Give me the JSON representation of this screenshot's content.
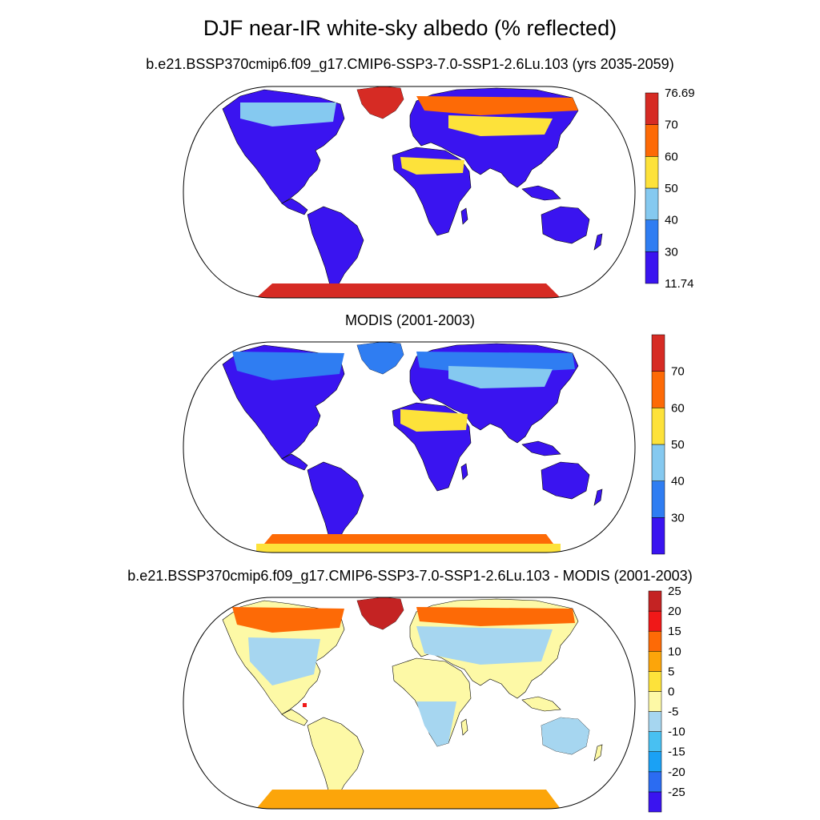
{
  "title": "DJF near-IR white-sky albedo (% reflected)",
  "panels": [
    {
      "title": "b.e21.BSSP370cmip6.f09_g17.CMIP6-SSP3-7.0-SSP1-2.6Lu.103 (yrs 2035-2059)",
      "colorbar": {
        "colors": [
          "#3a14f0",
          "#2f7df2",
          "#85c9f0",
          "#fde23a",
          "#fd6a06",
          "#d62b24"
        ],
        "labels": [
          "11.74",
          "30",
          "40",
          "50",
          "60",
          "70",
          "76.69"
        ]
      }
    },
    {
      "title": "MODIS (2001-2003)",
      "colorbar": {
        "colors": [
          "#3a14f0",
          "#2f7df2",
          "#85c9f0",
          "#fde23a",
          "#fd6a06",
          "#d62b24"
        ],
        "labels": [
          "30",
          "40",
          "50",
          "60",
          "70"
        ]
      }
    },
    {
      "title": "b.e21.BSSP370cmip6.f09_g17.CMIP6-SSP3-7.0-SSP1-2.6Lu.103 - MODIS (2001-2003)",
      "colorbar": {
        "colors": [
          "#3a14f0",
          "#2b6cf2",
          "#1aa1f5",
          "#48c0f2",
          "#a6d6f0",
          "#fdf9a6",
          "#fde23a",
          "#fca50a",
          "#fd6a06",
          "#f01818",
          "#c42323"
        ],
        "labels": [
          "-25",
          "-20",
          "-15",
          "-10",
          "-5",
          "0",
          "5",
          "10",
          "15",
          "20",
          "25"
        ]
      }
    }
  ]
}
